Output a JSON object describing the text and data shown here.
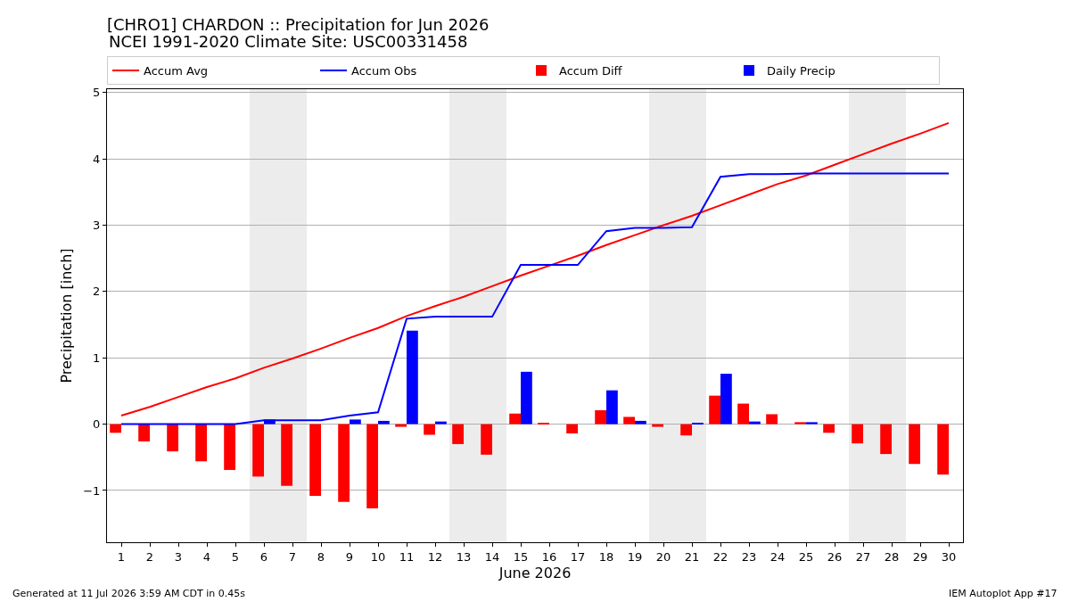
{
  "chart_data": {
    "type": "bar",
    "title": "[CHRO1] CHARDON :: Precipitation for Jun 2026",
    "subtitle": "NCEI 1991-2020 Climate Site: USC00331458",
    "xlabel": "June 2026",
    "ylabel": "Precipitation [inch]",
    "x": [
      1,
      2,
      3,
      4,
      5,
      6,
      7,
      8,
      9,
      10,
      11,
      12,
      13,
      14,
      15,
      16,
      17,
      18,
      19,
      20,
      21,
      22,
      23,
      24,
      25,
      26,
      27,
      28,
      29,
      30
    ],
    "xlim": [
      0.5,
      30.5
    ],
    "xticks": [
      1,
      2,
      3,
      4,
      5,
      6,
      7,
      8,
      9,
      10,
      11,
      12,
      13,
      14,
      15,
      16,
      17,
      18,
      19,
      20,
      21,
      22,
      23,
      24,
      25,
      26,
      27,
      28,
      29,
      30
    ],
    "ylim": [
      -1.78,
      5.05
    ],
    "yticks": [
      {
        "value": -1,
        "label": "−1"
      },
      0,
      1,
      2,
      3,
      4,
      5
    ],
    "grid": "y",
    "legend": "top",
    "bands": [
      {
        "axis": "x",
        "from": 5.5,
        "to": 7.5,
        "color": "#ececec"
      },
      {
        "axis": "x",
        "from": 12.5,
        "to": 14.5,
        "color": "#ececec"
      },
      {
        "axis": "x",
        "from": 19.5,
        "to": 21.5,
        "color": "#ececec"
      },
      {
        "axis": "x",
        "from": 26.5,
        "to": 28.5,
        "color": "#ececec"
      }
    ],
    "series": [
      {
        "name": "Accum Avg",
        "type": "line",
        "color": "#ff0000",
        "values": [
          0.13,
          0.26,
          0.41,
          0.56,
          0.69,
          0.85,
          0.99,
          1.14,
          1.3,
          1.45,
          1.63,
          1.78,
          1.92,
          2.08,
          2.24,
          2.39,
          2.54,
          2.7,
          2.85,
          3.0,
          3.14,
          3.3,
          3.46,
          3.62,
          3.75,
          3.91,
          4.07,
          4.23,
          4.38,
          4.54
        ]
      },
      {
        "name": "Accum Obs",
        "type": "line",
        "color": "#0000ff",
        "values": [
          0,
          0,
          0,
          0,
          0,
          0.06,
          0.06,
          0.06,
          0.13,
          0.18,
          1.59,
          1.62,
          1.62,
          1.62,
          2.4,
          2.4,
          2.4,
          2.91,
          2.96,
          2.96,
          2.97,
          3.73,
          3.77,
          3.77,
          3.78,
          3.78,
          3.78,
          3.78,
          3.78,
          3.78
        ]
      },
      {
        "name": "Accum Diff",
        "color": "#ff0000",
        "values": [
          -0.13,
          -0.26,
          -0.41,
          -0.56,
          -0.69,
          -0.79,
          -0.93,
          -1.08,
          -1.17,
          -1.27,
          -0.04,
          -0.16,
          -0.3,
          -0.46,
          0.16,
          0.01,
          -0.14,
          0.21,
          0.11,
          -0.04,
          -0.17,
          0.43,
          0.31,
          0.15,
          0.03,
          -0.13,
          -0.29,
          -0.45,
          -0.6,
          -0.76
        ]
      },
      {
        "name": "Daily Precip",
        "color": "#0000ff",
        "values": [
          0,
          0,
          0,
          0,
          0,
          0.07,
          0,
          0,
          0.07,
          0.05,
          1.41,
          0.04,
          0,
          0,
          0.79,
          0,
          0,
          0.51,
          0.05,
          0,
          0.01,
          0.76,
          0.04,
          0,
          0.03,
          0,
          0,
          0,
          0,
          0
        ]
      }
    ],
    "annotations": [
      "Generated at 11 Jul 2026 3:59 AM CDT in 0.45s",
      "IEM Autoplot App #17"
    ]
  }
}
